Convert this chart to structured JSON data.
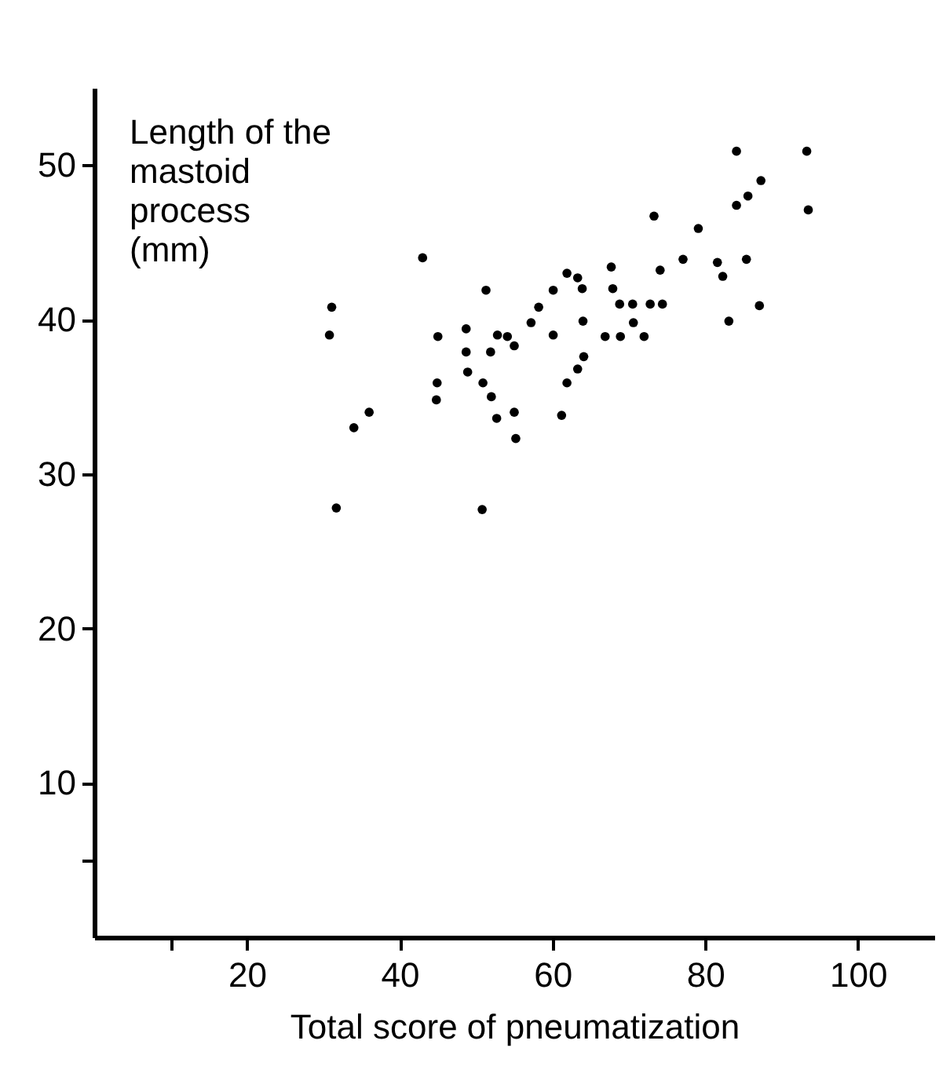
{
  "chart_data": {
    "type": "scatter",
    "xlabel": "Total score of pneumatization",
    "ylabel": "Length of the\nmastoid\nprocess\n(mm)",
    "x": [
      43.0,
      31.1,
      30.8,
      51.3,
      45.0,
      48.7,
      48.7,
      48.9,
      52.8,
      54.1,
      55.0,
      51.9,
      44.9,
      44.8,
      50.9,
      52.0,
      52.7,
      55.0,
      55.2,
      36.0,
      34.0,
      31.7,
      50.8,
      57.2,
      58.2,
      60.1,
      60.1,
      61.9,
      61.9,
      61.2,
      63.3,
      63.9,
      64.0,
      64.1,
      63.3,
      67.7,
      67.9,
      68.8,
      70.5,
      70.6,
      66.9,
      68.9,
      72.0,
      72.8,
      74.4,
      73.3,
      74.1,
      77.1,
      79.1,
      81.6,
      82.3,
      83.1,
      85.4,
      87.1,
      84.1,
      85.6,
      87.3,
      84.1,
      93.3,
      93.5
    ],
    "series": [
      {
        "color": "#000000",
        "values": [
          44.0,
          40.8,
          39.0,
          41.9,
          38.9,
          39.4,
          37.9,
          36.6,
          39.0,
          38.9,
          38.3,
          37.9,
          35.9,
          34.8,
          35.9,
          35.0,
          33.6,
          34.0,
          32.3,
          34.0,
          33.0,
          27.8,
          27.7,
          39.8,
          40.8,
          41.9,
          39.0,
          43.0,
          35.9,
          33.8,
          42.7,
          42.0,
          39.9,
          37.6,
          36.8,
          43.4,
          42.0,
          41.0,
          41.0,
          39.8,
          38.9,
          38.9,
          38.9,
          41.0,
          41.0,
          46.7,
          43.2,
          43.9,
          45.9,
          43.7,
          42.8,
          39.9,
          43.9,
          40.9,
          47.4,
          48.0,
          49.0,
          50.9,
          50.9,
          47.1
        ]
      }
    ],
    "xlim": [
      0,
      110
    ],
    "xticks": [
      {
        "value": 10,
        "label": null
      },
      20,
      40,
      60,
      80,
      100
    ],
    "ylim": [
      0,
      55
    ],
    "yticks": [
      {
        "value": 5,
        "label": null
      },
      10,
      20,
      30,
      40,
      50
    ],
    "marker": "circle",
    "grid": false
  }
}
